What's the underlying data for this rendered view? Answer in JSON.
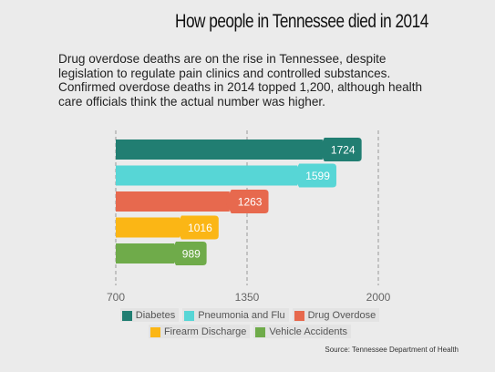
{
  "title": "How people in Tennessee died in 2014",
  "subtitle": "Drug overdose deaths are on the rise in Tennessee, despite legislation to regulate pain clinics and controlled substances. Confirmed overdose deaths in 2014 topped 1,200, although health care officials think the actual number was higher.",
  "source": "Source: Tennessee Department of Health",
  "chart_data": {
    "type": "bar",
    "orientation": "horizontal",
    "series": [
      {
        "name": "Diabetes",
        "value": 1724,
        "color": "#217e72"
      },
      {
        "name": "Pneumonia and Flu",
        "value": 1599,
        "color": "#57d6d6"
      },
      {
        "name": "Drug Overdose",
        "value": 1263,
        "color": "#e7694e"
      },
      {
        "name": "Firearm Discharge",
        "value": 1016,
        "color": "#fbb615"
      },
      {
        "name": "Vehicle Accidents",
        "value": 989,
        "color": "#6fab4a"
      }
    ],
    "xlim": [
      700,
      2000
    ],
    "xticks": [
      "700",
      "1350",
      "2000"
    ],
    "grid": "vertical dashed lines at ticks",
    "legend_position": "bottom"
  }
}
